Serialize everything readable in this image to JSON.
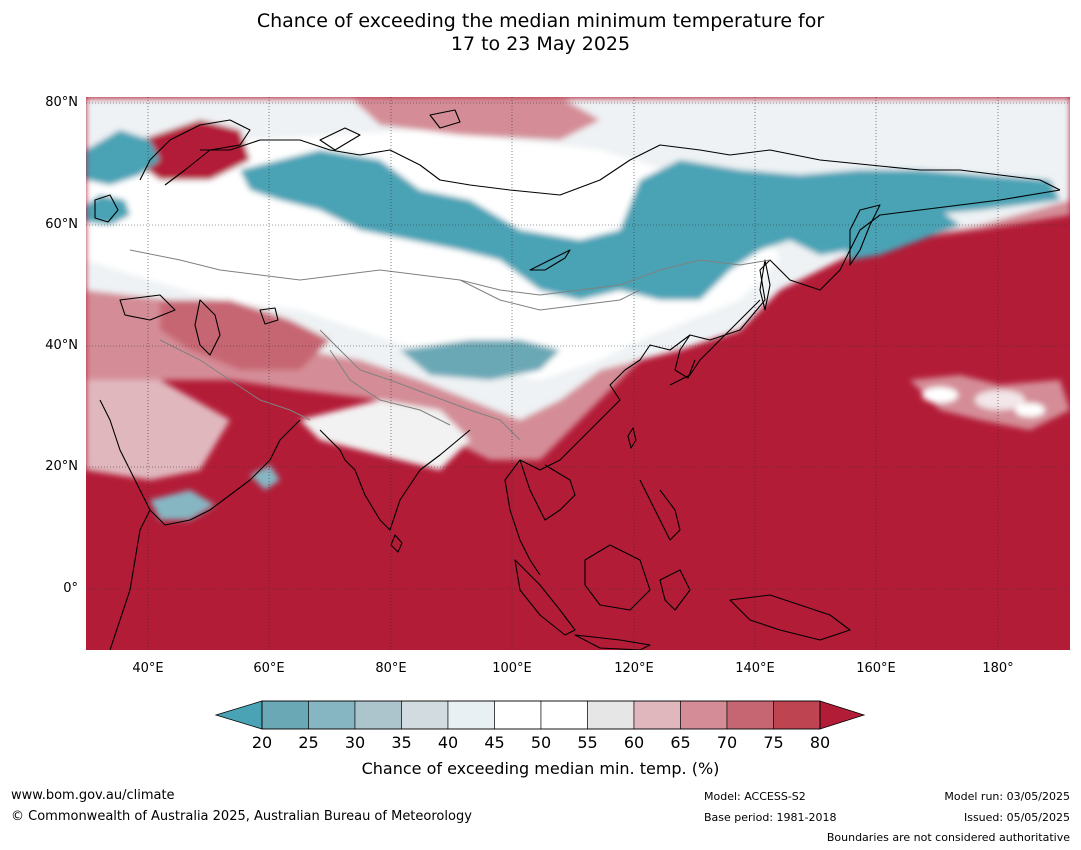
{
  "title": {
    "line1": "Chance of exceeding the median minimum temperature for",
    "line2": "17 to 23 May 2025"
  },
  "map": {
    "lat_labels": [
      "80°N",
      "60°N",
      "40°N",
      "20°N",
      "0°"
    ],
    "lon_labels": [
      "40°E",
      "60°E",
      "80°E",
      "100°E",
      "120°E",
      "140°E",
      "160°E",
      "180°"
    ],
    "colors": {
      "below": "#4aa3b5",
      "neutral": "#ffffff",
      "above": "#b31c37",
      "ocean_above": "#b31c37",
      "coast": "#000000",
      "border": "#808080",
      "grid": "#333333"
    }
  },
  "colorbar": {
    "ticks": [
      "20",
      "25",
      "30",
      "35",
      "40",
      "45",
      "50",
      "55",
      "60",
      "65",
      "70",
      "75",
      "80"
    ],
    "colors": [
      "#4aa3b5",
      "#6aa8b6",
      "#86b6c2",
      "#acc4cc",
      "#d2dbdf",
      "#e9f0f3",
      "#ffffff",
      "#ffffff",
      "#e6e6e6",
      "#e0b7bd",
      "#d48d97",
      "#c76673",
      "#be4452",
      "#b31c37"
    ],
    "label": "Chance of exceeding median min. temp. (%)"
  },
  "footer": {
    "url": "www.bom.gov.au/climate",
    "copyright": "© Commonwealth of Australia 2025, Australian Bureau of Meteorology",
    "model": "Model: ACCESS-S2",
    "base_period": "Base period: 1981-2018",
    "model_run": "Model run: 03/05/2025",
    "issued": "Issued: 05/05/2025",
    "disclaimer": "Boundaries are not considered authoritative"
  }
}
